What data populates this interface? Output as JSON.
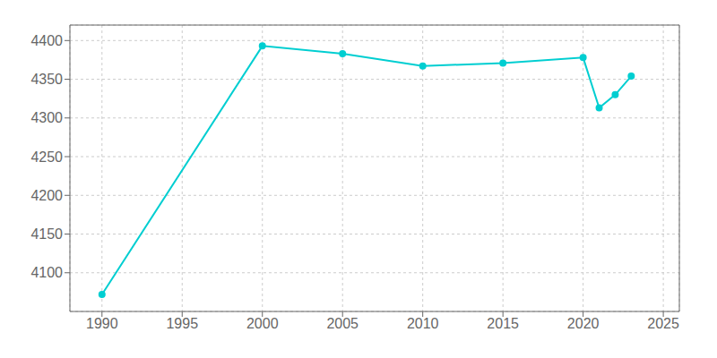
{
  "chart_data": {
    "type": "line",
    "x": [
      1990,
      2000,
      2005,
      2010,
      2015,
      2020,
      2021,
      2022,
      2023
    ],
    "values": [
      4072,
      4393,
      4383,
      4367,
      4371,
      4378,
      4313,
      4330,
      4354
    ],
    "color": "#00CED1",
    "marker": "circle",
    "xlim": [
      1988,
      2026
    ],
    "ylim": [
      4050,
      4420
    ],
    "xticks": [
      1990,
      1995,
      2000,
      2005,
      2010,
      2015,
      2020,
      2025
    ],
    "yticks": [
      4100,
      4150,
      4200,
      4250,
      4300,
      4350,
      4400
    ],
    "grid": true
  }
}
